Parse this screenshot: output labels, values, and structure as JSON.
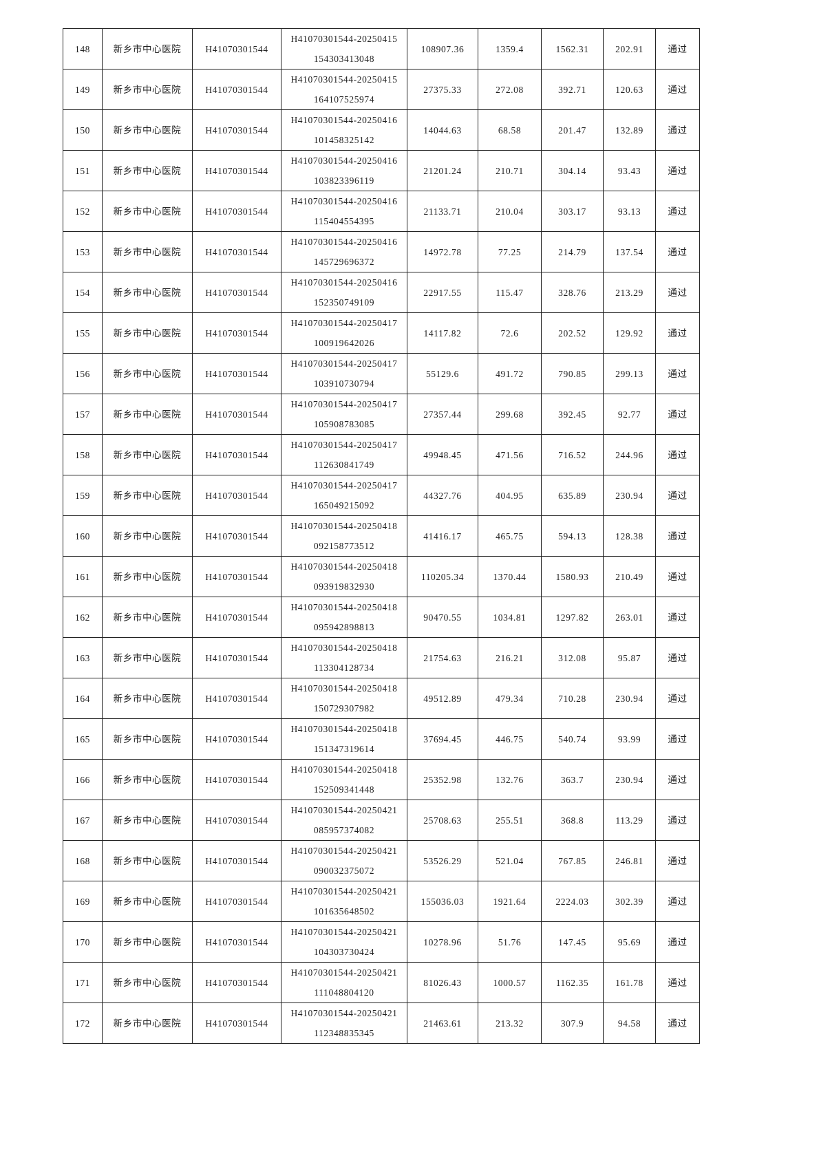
{
  "table": {
    "rows": [
      {
        "no": "148",
        "hospital": "新乡市中心医院",
        "code": "H41070301544",
        "serial_1": "H41070301544-20250415",
        "serial_2": "154303413048",
        "total": "108907.36",
        "col6": "1359.4",
        "col7": "1562.31",
        "col8": "202.91",
        "result": "通过"
      },
      {
        "no": "149",
        "hospital": "新乡市中心医院",
        "code": "H41070301544",
        "serial_1": "H41070301544-20250415",
        "serial_2": "164107525974",
        "total": "27375.33",
        "col6": "272.08",
        "col7": "392.71",
        "col8": "120.63",
        "result": "通过"
      },
      {
        "no": "150",
        "hospital": "新乡市中心医院",
        "code": "H41070301544",
        "serial_1": "H41070301544-20250416",
        "serial_2": "101458325142",
        "total": "14044.63",
        "col6": "68.58",
        "col7": "201.47",
        "col8": "132.89",
        "result": "通过"
      },
      {
        "no": "151",
        "hospital": "新乡市中心医院",
        "code": "H41070301544",
        "serial_1": "H41070301544-20250416",
        "serial_2": "103823396119",
        "total": "21201.24",
        "col6": "210.71",
        "col7": "304.14",
        "col8": "93.43",
        "result": "通过"
      },
      {
        "no": "152",
        "hospital": "新乡市中心医院",
        "code": "H41070301544",
        "serial_1": "H41070301544-20250416",
        "serial_2": "115404554395",
        "total": "21133.71",
        "col6": "210.04",
        "col7": "303.17",
        "col8": "93.13",
        "result": "通过"
      },
      {
        "no": "153",
        "hospital": "新乡市中心医院",
        "code": "H41070301544",
        "serial_1": "H41070301544-20250416",
        "serial_2": "145729696372",
        "total": "14972.78",
        "col6": "77.25",
        "col7": "214.79",
        "col8": "137.54",
        "result": "通过"
      },
      {
        "no": "154",
        "hospital": "新乡市中心医院",
        "code": "H41070301544",
        "serial_1": "H41070301544-20250416",
        "serial_2": "152350749109",
        "total": "22917.55",
        "col6": "115.47",
        "col7": "328.76",
        "col8": "213.29",
        "result": "通过"
      },
      {
        "no": "155",
        "hospital": "新乡市中心医院",
        "code": "H41070301544",
        "serial_1": "H41070301544-20250417",
        "serial_2": "100919642026",
        "total": "14117.82",
        "col6": "72.6",
        "col7": "202.52",
        "col8": "129.92",
        "result": "通过"
      },
      {
        "no": "156",
        "hospital": "新乡市中心医院",
        "code": "H41070301544",
        "serial_1": "H41070301544-20250417",
        "serial_2": "103910730794",
        "total": "55129.6",
        "col6": "491.72",
        "col7": "790.85",
        "col8": "299.13",
        "result": "通过"
      },
      {
        "no": "157",
        "hospital": "新乡市中心医院",
        "code": "H41070301544",
        "serial_1": "H41070301544-20250417",
        "serial_2": "105908783085",
        "total": "27357.44",
        "col6": "299.68",
        "col7": "392.45",
        "col8": "92.77",
        "result": "通过"
      },
      {
        "no": "158",
        "hospital": "新乡市中心医院",
        "code": "H41070301544",
        "serial_1": "H41070301544-20250417",
        "serial_2": "112630841749",
        "total": "49948.45",
        "col6": "471.56",
        "col7": "716.52",
        "col8": "244.96",
        "result": "通过"
      },
      {
        "no": "159",
        "hospital": "新乡市中心医院",
        "code": "H41070301544",
        "serial_1": "H41070301544-20250417",
        "serial_2": "165049215092",
        "total": "44327.76",
        "col6": "404.95",
        "col7": "635.89",
        "col8": "230.94",
        "result": "通过"
      },
      {
        "no": "160",
        "hospital": "新乡市中心医院",
        "code": "H41070301544",
        "serial_1": "H41070301544-20250418",
        "serial_2": "092158773512",
        "total": "41416.17",
        "col6": "465.75",
        "col7": "594.13",
        "col8": "128.38",
        "result": "通过"
      },
      {
        "no": "161",
        "hospital": "新乡市中心医院",
        "code": "H41070301544",
        "serial_1": "H41070301544-20250418",
        "serial_2": "093919832930",
        "total": "110205.34",
        "col6": "1370.44",
        "col7": "1580.93",
        "col8": "210.49",
        "result": "通过"
      },
      {
        "no": "162",
        "hospital": "新乡市中心医院",
        "code": "H41070301544",
        "serial_1": "H41070301544-20250418",
        "serial_2": "095942898813",
        "total": "90470.55",
        "col6": "1034.81",
        "col7": "1297.82",
        "col8": "263.01",
        "result": "通过"
      },
      {
        "no": "163",
        "hospital": "新乡市中心医院",
        "code": "H41070301544",
        "serial_1": "H41070301544-20250418",
        "serial_2": "113304128734",
        "total": "21754.63",
        "col6": "216.21",
        "col7": "312.08",
        "col8": "95.87",
        "result": "通过"
      },
      {
        "no": "164",
        "hospital": "新乡市中心医院",
        "code": "H41070301544",
        "serial_1": "H41070301544-20250418",
        "serial_2": "150729307982",
        "total": "49512.89",
        "col6": "479.34",
        "col7": "710.28",
        "col8": "230.94",
        "result": "通过"
      },
      {
        "no": "165",
        "hospital": "新乡市中心医院",
        "code": "H41070301544",
        "serial_1": "H41070301544-20250418",
        "serial_2": "151347319614",
        "total": "37694.45",
        "col6": "446.75",
        "col7": "540.74",
        "col8": "93.99",
        "result": "通过"
      },
      {
        "no": "166",
        "hospital": "新乡市中心医院",
        "code": "H41070301544",
        "serial_1": "H41070301544-20250418",
        "serial_2": "152509341448",
        "total": "25352.98",
        "col6": "132.76",
        "col7": "363.7",
        "col8": "230.94",
        "result": "通过"
      },
      {
        "no": "167",
        "hospital": "新乡市中心医院",
        "code": "H41070301544",
        "serial_1": "H41070301544-20250421",
        "serial_2": "085957374082",
        "total": "25708.63",
        "col6": "255.51",
        "col7": "368.8",
        "col8": "113.29",
        "result": "通过"
      },
      {
        "no": "168",
        "hospital": "新乡市中心医院",
        "code": "H41070301544",
        "serial_1": "H41070301544-20250421",
        "serial_2": "090032375072",
        "total": "53526.29",
        "col6": "521.04",
        "col7": "767.85",
        "col8": "246.81",
        "result": "通过"
      },
      {
        "no": "169",
        "hospital": "新乡市中心医院",
        "code": "H41070301544",
        "serial_1": "H41070301544-20250421",
        "serial_2": "101635648502",
        "total": "155036.03",
        "col6": "1921.64",
        "col7": "2224.03",
        "col8": "302.39",
        "result": "通过"
      },
      {
        "no": "170",
        "hospital": "新乡市中心医院",
        "code": "H41070301544",
        "serial_1": "H41070301544-20250421",
        "serial_2": "104303730424",
        "total": "10278.96",
        "col6": "51.76",
        "col7": "147.45",
        "col8": "95.69",
        "result": "通过"
      },
      {
        "no": "171",
        "hospital": "新乡市中心医院",
        "code": "H41070301544",
        "serial_1": "H41070301544-20250421",
        "serial_2": "111048804120",
        "total": "81026.43",
        "col6": "1000.57",
        "col7": "1162.35",
        "col8": "161.78",
        "result": "通过"
      },
      {
        "no": "172",
        "hospital": "新乡市中心医院",
        "code": "H41070301544",
        "serial_1": "H41070301544-20250421",
        "serial_2": "112348835345",
        "total": "21463.61",
        "col6": "213.32",
        "col7": "307.9",
        "col8": "94.58",
        "result": "通过"
      }
    ]
  }
}
